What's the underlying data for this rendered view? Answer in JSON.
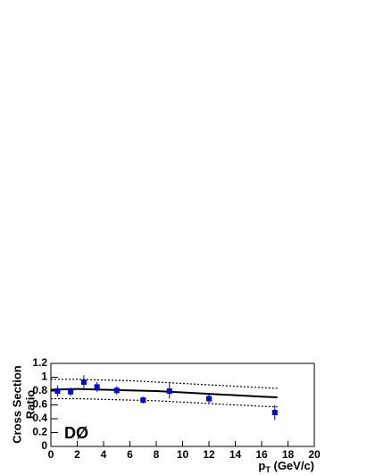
{
  "chart_data": {
    "type": "scatter",
    "y_label": [
      "Cross Section",
      "Ratio"
    ],
    "x_label": [
      "p",
      "T",
      " (GeV/c)"
    ],
    "annotation": "DØ",
    "xlim": [
      0,
      20
    ],
    "xticks": [
      0,
      2,
      4,
      6,
      8,
      10,
      12,
      14,
      16,
      18,
      20
    ],
    "ylim": [
      0,
      1.2
    ],
    "yticks": [
      0,
      0.2,
      0.4,
      0.6,
      0.8,
      1,
      1.2
    ],
    "points": {
      "color": "#0000ff",
      "x": [
        0.5,
        1.5,
        2.5,
        3.5,
        5,
        7,
        9,
        12,
        17
      ],
      "values": [
        0.8,
        0.79,
        0.93,
        0.86,
        0.81,
        0.67,
        0.8,
        0.69,
        0.49
      ],
      "errors": [
        0.08,
        0.06,
        0.1,
        0.07,
        0.06,
        0.05,
        0.11,
        0.06,
        0.11
      ]
    },
    "curves": [
      {
        "color": "#000000",
        "dashed": false,
        "x": [
          0,
          2,
          4,
          6,
          8,
          10,
          12,
          14,
          16,
          17.2
        ],
        "values": [
          0.82,
          0.83,
          0.82,
          0.81,
          0.8,
          0.78,
          0.76,
          0.74,
          0.72,
          0.71
        ]
      },
      {
        "color": "#000000",
        "dashed": true,
        "x": [
          0,
          2,
          4,
          6,
          8,
          10,
          12,
          14,
          16,
          17.2
        ],
        "values": [
          0.97,
          0.97,
          0.96,
          0.95,
          0.93,
          0.91,
          0.89,
          0.87,
          0.85,
          0.84
        ]
      },
      {
        "color": "#000000",
        "dashed": true,
        "x": [
          0,
          2,
          4,
          6,
          8,
          10,
          12,
          14,
          16,
          17.2
        ],
        "values": [
          0.69,
          0.69,
          0.68,
          0.67,
          0.66,
          0.64,
          0.62,
          0.6,
          0.58,
          0.57
        ]
      }
    ]
  }
}
